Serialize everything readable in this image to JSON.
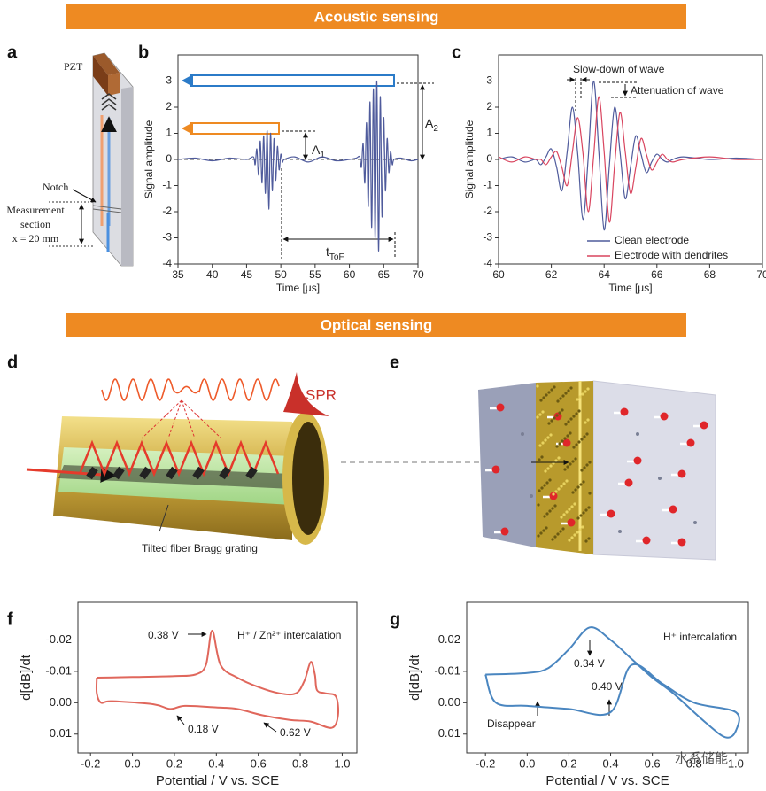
{
  "sections": [
    "Acoustic sensing",
    "Optical sensing"
  ],
  "panel_a": {
    "label": "a",
    "texts": [
      "PZT",
      "Notch",
      "Measurement",
      "section",
      "x = 20 mm"
    ]
  },
  "panel_d": {
    "label": "d",
    "texts": [
      "SPR",
      "Tilted fiber Bragg grating"
    ]
  },
  "panel_e": {
    "label": "e"
  },
  "watermark": "水系储能",
  "chart_data": [
    {
      "type": "line",
      "panel": "b",
      "xlabel": "Time [μs]",
      "ylabel": "Signal amplitude",
      "xlim": [
        35,
        70
      ],
      "ylim": [
        -4,
        4
      ],
      "xticks": [
        35,
        40,
        45,
        50,
        55,
        60,
        65,
        70
      ],
      "yticks": [
        -4,
        -3,
        -2,
        -1,
        0,
        1,
        2,
        3
      ],
      "zero_line": true,
      "annotations": {
        "A1": {
          "main": "A",
          "sub": "1"
        },
        "A2": {
          "main": "A",
          "sub": "2"
        },
        "tof": {
          "main": "t",
          "sub": "ToF"
        }
      },
      "x": [
        35,
        37.5,
        40,
        42.5,
        45,
        46,
        46.25,
        46.5,
        46.75,
        47,
        47.25,
        47.5,
        47.75,
        48,
        48.25,
        48.5,
        48.75,
        49,
        49.25,
        49.5,
        49.75,
        50,
        50.25,
        50.5,
        52,
        54,
        56,
        58,
        60,
        61,
        61.5,
        61.75,
        62,
        62.25,
        62.5,
        62.75,
        63,
        63.25,
        63.5,
        63.75,
        64,
        64.25,
        64.5,
        64.75,
        65,
        65.25,
        65.5,
        65.75,
        66,
        66.25,
        66.5,
        67.5,
        69,
        70
      ],
      "series": [
        {
          "color": "#4f5b9c",
          "values": [
            0,
            0.05,
            -0.05,
            0.05,
            0,
            0.1,
            -0.2,
            0.4,
            -0.6,
            0.7,
            -0.9,
            0.9,
            -1.3,
            1.1,
            -1.9,
            1.0,
            -1.2,
            0.8,
            -0.8,
            0.5,
            -0.4,
            0.2,
            -0.1,
            0,
            0.1,
            -0.1,
            0.1,
            -0.05,
            0,
            0.05,
            0.1,
            -0.3,
            0.6,
            -0.9,
            1.4,
            -1.8,
            2.2,
            -2.6,
            2.7,
            -3.0,
            3.0,
            -3.5,
            2.4,
            -2.2,
            1.6,
            -1.2,
            0.8,
            -0.5,
            0.3,
            -0.2,
            0,
            0.05,
            -0.05,
            0
          ]
        }
      ]
    },
    {
      "type": "line",
      "panel": "c",
      "xlabel": "Time [μs]",
      "ylabel": "Signal amplitude",
      "xlim": [
        60,
        70
      ],
      "ylim": [
        -4,
        4
      ],
      "xticks": [
        60,
        62,
        64,
        66,
        68,
        70
      ],
      "yticks": [
        -4,
        -3,
        -2,
        -1,
        0,
        1,
        2,
        3
      ],
      "legend": "lower right",
      "annotations": [
        "Slow-down of wave",
        "Attenuation of wave"
      ],
      "x": [
        60,
        60.5,
        61,
        61.4,
        61.6,
        61.8,
        62.0,
        62.2,
        62.4,
        62.6,
        62.8,
        63.0,
        63.2,
        63.4,
        63.6,
        63.8,
        64.0,
        64.2,
        64.4,
        64.6,
        64.8,
        65.0,
        65.2,
        65.4,
        65.6,
        65.8,
        66.0,
        66.2,
        66.4,
        66.6,
        67,
        68,
        69,
        70
      ],
      "series": [
        {
          "name": "Clean electrode",
          "color": "#4f5b9c",
          "values": [
            0,
            0.1,
            -0.1,
            0,
            -0.2,
            0.1,
            0.4,
            -0.3,
            -1.2,
            0.3,
            2.0,
            0.2,
            -2.3,
            0.1,
            3.0,
            0.3,
            -2.7,
            -0.2,
            2.0,
            0.3,
            -1.5,
            -0.3,
            0.9,
            0.2,
            -0.5,
            -0.1,
            0.2,
            0,
            -0.1,
            0,
            0.1,
            0,
            0.05,
            0
          ]
        },
        {
          "name": "Electrode with dendrites",
          "color": "#d9455f",
          "values": [
            0.1,
            -0.1,
            0.1,
            0,
            0,
            -0.2,
            0.1,
            0.3,
            -0.3,
            -1.0,
            0.3,
            1.6,
            0.2,
            -2.0,
            0.1,
            2.4,
            0.3,
            -2.4,
            -0.2,
            1.8,
            0.3,
            -1.3,
            -0.3,
            0.8,
            0.2,
            -0.4,
            -0.1,
            0.2,
            0,
            -0.1,
            0,
            0.1,
            0,
            0
          ]
        }
      ]
    },
    {
      "type": "line",
      "panel": "f",
      "xlabel": "Potential / V vs. SCE",
      "ylabel": "d[dB]/dt",
      "xlim": [
        -0.26,
        1.07
      ],
      "ylim": [
        0.016,
        -0.032
      ],
      "xticks": [
        -0.2,
        {
          "value": 0,
          "label": "0.0"
        },
        0.2,
        0.4,
        0.6,
        0.8,
        {
          "value": 1,
          "label": "1.0"
        }
      ],
      "yticks": [
        -0.02,
        -0.01,
        {
          "value": 0,
          "label": "0.00"
        },
        0.01
      ],
      "annotations": [
        "0.38 V",
        "H⁺ / Zn²⁺ intercalation",
        "0.18 V",
        "0.62 V"
      ],
      "series": [
        {
          "color": "#e0675c",
          "x": [
            -0.17,
            0.0,
            0.2,
            0.3,
            0.35,
            0.38,
            0.42,
            0.5,
            0.6,
            0.7,
            0.78,
            0.82,
            0.85,
            0.87,
            0.88,
            0.92,
            0.97,
            0.98,
            0.95,
            0.85,
            0.75,
            0.62,
            0.5,
            0.4,
            0.25,
            0.18,
            0.1,
            -0.1,
            -0.15,
            -0.17,
            -0.17
          ],
          "values": [
            -0.008,
            -0.0082,
            -0.0085,
            -0.009,
            -0.012,
            -0.023,
            -0.012,
            -0.008,
            -0.005,
            -0.003,
            -0.003,
            -0.007,
            -0.013,
            -0.009,
            -0.004,
            -0.003,
            -0.002,
            0.004,
            0.008,
            0.006,
            0.0055,
            0.004,
            0.002,
            0.0015,
            0.001,
            0.002,
            0.0005,
            -0.0005,
            0.0,
            -0.003,
            -0.008
          ]
        }
      ]
    },
    {
      "type": "line",
      "panel": "g",
      "xlabel": "Potential / V vs. SCE",
      "ylabel": "d[dB]/dt",
      "xlim": [
        -0.29,
        1.06
      ],
      "ylim": [
        0.016,
        -0.032
      ],
      "xticks": [
        -0.2,
        {
          "value": 0,
          "label": "0.0"
        },
        0.2,
        0.4,
        0.6,
        0.8,
        {
          "value": 1,
          "label": "1.0"
        }
      ],
      "yticks": [
        -0.02,
        -0.01,
        {
          "value": 0,
          "label": "0.00"
        },
        0.01
      ],
      "annotations": [
        "H⁺ intercalation",
        "0.34 V",
        "0.40 V",
        "Disappear"
      ],
      "series": [
        {
          "color": "#4a86c0",
          "x": [
            -0.2,
            0.0,
            0.1,
            0.2,
            0.3,
            0.4,
            0.5,
            0.6,
            0.7,
            0.85,
            0.95,
            1.0,
            1.0,
            0.8,
            0.65,
            0.5,
            0.4,
            0.2,
            0.0,
            -0.15,
            -0.2
          ],
          "values": [
            -0.009,
            -0.0095,
            -0.011,
            -0.017,
            -0.024,
            -0.02,
            -0.014,
            -0.008,
            -0.003,
            0.006,
            0.011,
            0.009,
            0.003,
            0.0,
            -0.006,
            -0.012,
            0.003,
            0.002,
            0.001,
            0.0,
            -0.009
          ]
        }
      ]
    }
  ]
}
